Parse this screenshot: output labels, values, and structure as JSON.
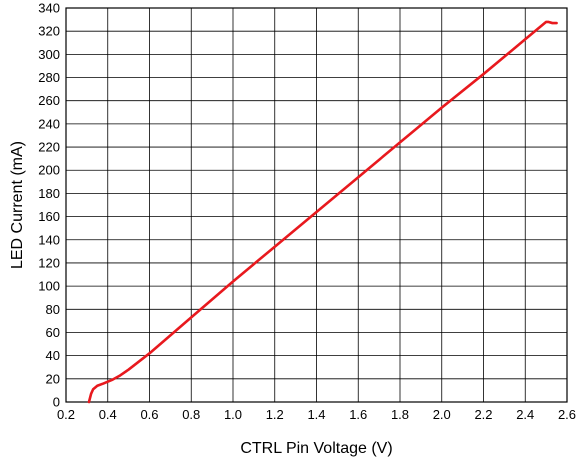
{
  "chart_data": {
    "type": "line",
    "title": "",
    "xlabel": "CTRL Pin Voltage (V)",
    "ylabel": "LED Current (mA)",
    "xlim": [
      0.2,
      2.6
    ],
    "ylim": [
      0,
      340
    ],
    "x_ticks": [
      "0.2",
      "0.4",
      "0.6",
      "0.8",
      "1.0",
      "1.2",
      "1.4",
      "1.6",
      "1.8",
      "2.0",
      "2.2",
      "2.4",
      "2.6"
    ],
    "y_ticks": [
      "0",
      "20",
      "40",
      "60",
      "80",
      "100",
      "120",
      "140",
      "160",
      "180",
      "200",
      "220",
      "240",
      "260",
      "280",
      "300",
      "320",
      "340"
    ],
    "grid": true,
    "series": [
      {
        "color": "#e8191e",
        "x": [
          0.31,
          0.32,
          0.33,
          0.35,
          0.38,
          0.42,
          0.46,
          0.5,
          0.55,
          0.6,
          0.8,
          1.0,
          1.2,
          1.4,
          1.6,
          1.8,
          2.0,
          2.2,
          2.4,
          2.5,
          2.51,
          2.53,
          2.55
        ],
        "y": [
          0,
          7,
          11,
          14,
          16,
          19,
          23,
          28,
          35,
          42,
          73,
          104,
          134,
          164,
          194,
          224,
          254,
          283,
          313,
          328,
          328,
          327,
          327
        ]
      }
    ]
  }
}
